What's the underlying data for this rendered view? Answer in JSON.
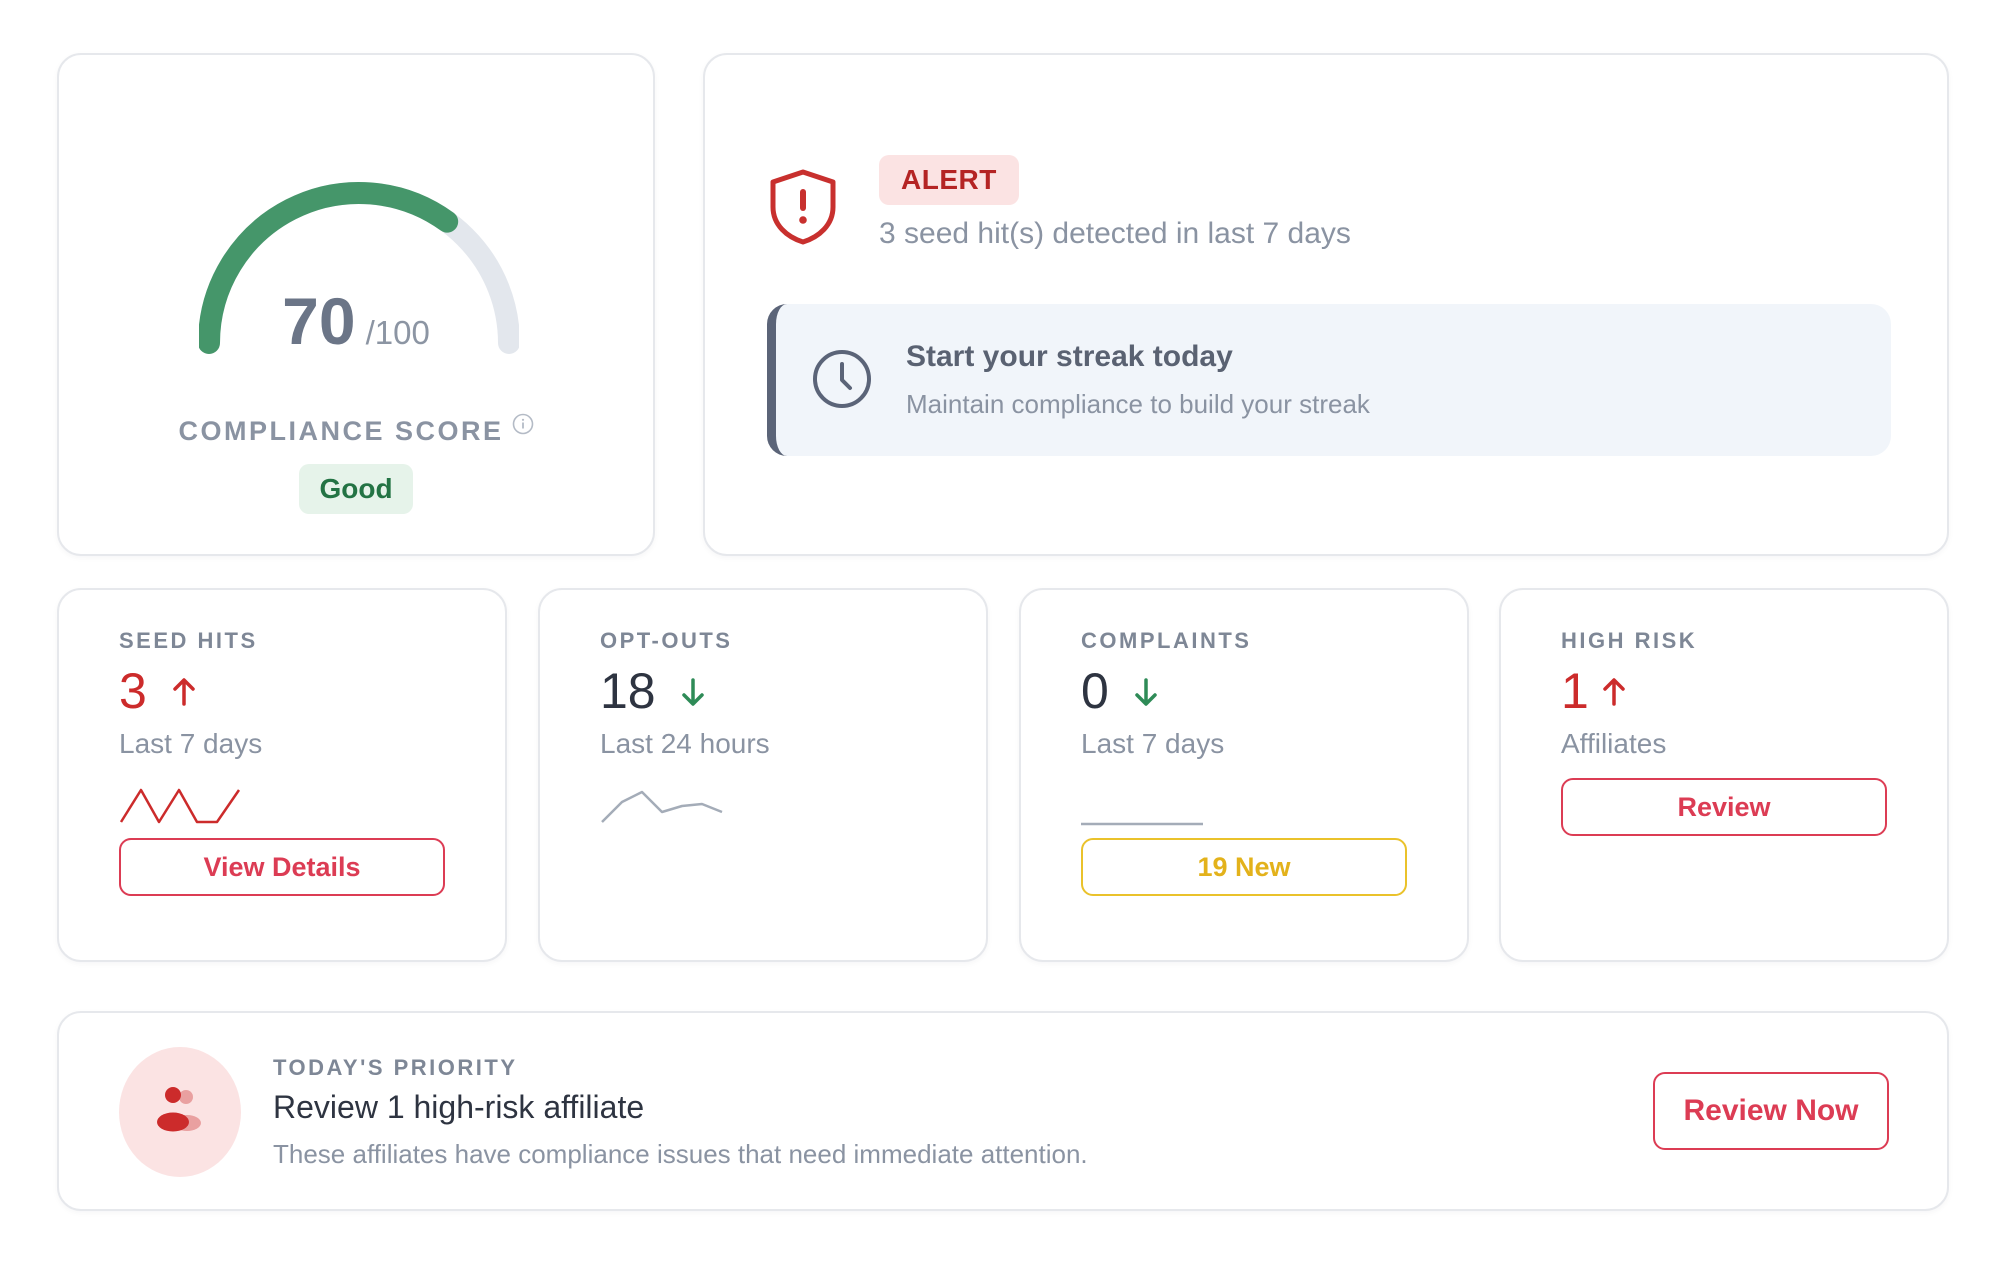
{
  "score": {
    "value": "70",
    "max": "/100",
    "fraction": 0.7,
    "label": "COMPLIANCE SCORE",
    "status": "Good",
    "colors": {
      "arc": "#45966a",
      "track": "#e3e7ed"
    }
  },
  "alert": {
    "badge": "ALERT",
    "message": "3 seed hit(s) detected in last 7 days",
    "color": "#c8302e"
  },
  "streak": {
    "title": "Start your streak today",
    "subtitle": "Maintain compliance to build your streak"
  },
  "metrics": {
    "seed_hits": {
      "label": "SEED HITS",
      "value": "3",
      "trend": "up",
      "period": "Last 7 days",
      "button": "View Details"
    },
    "opt_outs": {
      "label": "OPT-OUTS",
      "value": "18",
      "trend": "down",
      "period": "Last 24 hours"
    },
    "complaints": {
      "label": "COMPLAINTS",
      "value": "0",
      "trend": "down",
      "period": "Last 7 days",
      "button": "19 New"
    },
    "high_risk": {
      "label": "HIGH RISK",
      "value": "1",
      "trend": "up",
      "period": "Affiliates",
      "button": "Review"
    }
  },
  "priority": {
    "label": "TODAY'S PRIORITY",
    "title": "Review 1 high-risk affiliate",
    "description": "These affiliates have compliance issues that need immediate attention.",
    "button": "Review Now"
  }
}
